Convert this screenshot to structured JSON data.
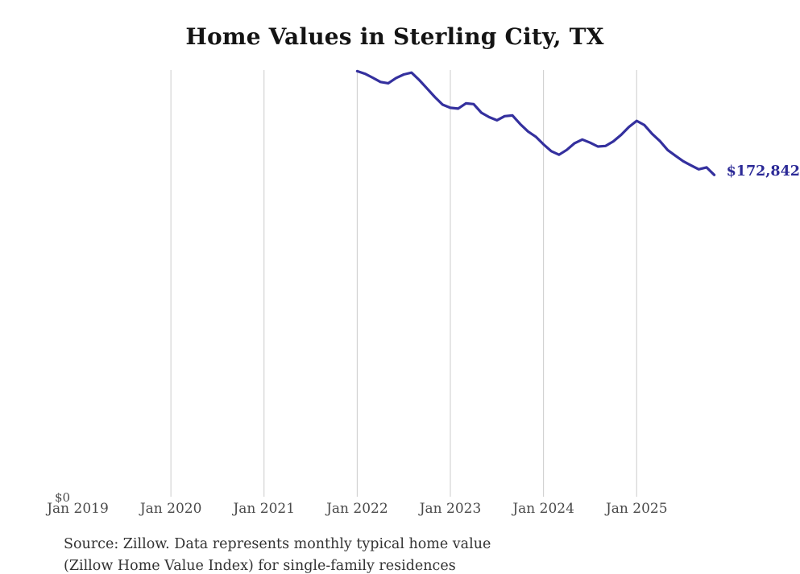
{
  "title": "Home Values in Sterling City, TX",
  "y_axis": {
    "zero_label": "$0"
  },
  "end_label": "$172,842",
  "source": {
    "line1": "Source: Zillow. Data represents monthly typical home value",
    "line2": "(Zillow Home Value Index) for single-family residences"
  },
  "colors": {
    "line": "#34309e",
    "end_label": "#2c2a97",
    "grid": "#cccccc",
    "tick_text": "#4a4a4a",
    "title_text": "#141414",
    "source_text": "#333333"
  },
  "chart_data": {
    "type": "line",
    "title": "Home Values in Sterling City, TX",
    "xlabel": "",
    "ylabel": "",
    "ylim": [
      0,
      229200
    ],
    "grid": "vertical-only",
    "legend": "none",
    "x_ticks": [
      {
        "label": "Jan 2019",
        "year": 2019,
        "gridline": false
      },
      {
        "label": "Jan 2020",
        "year": 2020,
        "gridline": true
      },
      {
        "label": "Jan 2021",
        "year": 2021,
        "gridline": true
      },
      {
        "label": "Jan 2022",
        "year": 2022,
        "gridline": true
      },
      {
        "label": "Jan 2023",
        "year": 2023,
        "gridline": true
      },
      {
        "label": "Jan 2024",
        "year": 2024,
        "gridline": true
      },
      {
        "label": "Jan 2025",
        "year": 2025,
        "gridline": true
      }
    ],
    "series": [
      {
        "name": "Typical home value (monthly)",
        "start_month": "2022-01",
        "end_month": "2025-11",
        "latest_value": 172842,
        "latest_value_label": "$172,842",
        "values": [
          228600,
          227200,
          225100,
          222800,
          222100,
          224900,
          226800,
          227800,
          223800,
          219300,
          214700,
          210600,
          208900,
          208500,
          211300,
          210900,
          206300,
          203900,
          202200,
          204400,
          204800,
          200200,
          196200,
          193400,
          189300,
          185600,
          183700,
          186300,
          189900,
          191900,
          190200,
          188100,
          188400,
          190900,
          194400,
          198600,
          201900,
          199600,
          194900,
          191000,
          186200,
          183200,
          180200,
          178000,
          175900,
          176900,
          172842
        ]
      }
    ]
  }
}
